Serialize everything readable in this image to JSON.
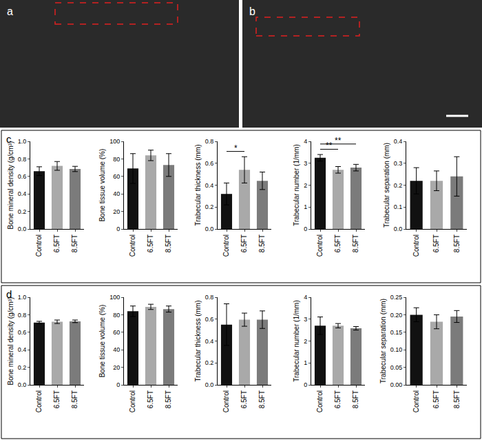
{
  "images": [
    {
      "label": "a"
    },
    {
      "label": "b"
    }
  ],
  "chart_data": [
    {
      "panel": "c",
      "type": "bar",
      "y_label": "Bone mineral density (g/cm³)",
      "categories": [
        "Control",
        "6.5FT",
        "8.5FT"
      ],
      "values": [
        0.66,
        0.72,
        0.685
      ],
      "error": [
        0.05,
        0.05,
        0.03
      ],
      "colors": [
        "#111111",
        "#a9a9a9",
        "#7b7b7b"
      ],
      "ylim": [
        0,
        1.0
      ],
      "yticks": [
        {
          "value": 0,
          "label": "0.0"
        },
        {
          "value": 0.2,
          "label": "0.2"
        },
        {
          "value": 0.4,
          "label": "0.4"
        },
        {
          "value": 0.6,
          "label": "0.6"
        },
        {
          "value": 0.8,
          "label": "0.8"
        },
        {
          "value": 1.0,
          "label": "1.0"
        }
      ],
      "significance": []
    },
    {
      "panel": "c",
      "type": "bar",
      "y_label": "Bone tissue volume (%)",
      "categories": [
        "Control",
        "6.5FT",
        "8.5FT"
      ],
      "values": [
        69,
        84,
        73
      ],
      "error": [
        17,
        6,
        13
      ],
      "colors": [
        "#111111",
        "#a9a9a9",
        "#7b7b7b"
      ],
      "ylim": [
        0,
        100
      ],
      "yticks": [
        0,
        20,
        40,
        60,
        80,
        100
      ],
      "significance": []
    },
    {
      "panel": "c",
      "type": "bar",
      "y_label": "Trabecular thickness (mm)",
      "categories": [
        "Control",
        "6.5FT",
        "8.5FT"
      ],
      "values": [
        0.32,
        0.54,
        0.44
      ],
      "error": [
        0.1,
        0.12,
        0.08
      ],
      "colors": [
        "#111111",
        "#a9a9a9",
        "#7b7b7b"
      ],
      "ylim": [
        0,
        0.8
      ],
      "yticks": [
        {
          "value": 0,
          "label": "0.0"
        },
        {
          "value": 0.2,
          "label": "0.2"
        },
        {
          "value": 0.4,
          "label": "0.4"
        },
        {
          "value": 0.6,
          "label": "0.6"
        },
        {
          "value": 0.8,
          "label": "0.8"
        }
      ],
      "significance": [
        {
          "from": "Control",
          "to": "6.5FT",
          "label": "*"
        }
      ]
    },
    {
      "panel": "c",
      "type": "bar",
      "y_label": "Trabecular number (1/mm)",
      "categories": [
        "Control",
        "6.5FT",
        "8.5FT"
      ],
      "values": [
        3.25,
        2.7,
        2.8
      ],
      "error": [
        0.15,
        0.15,
        0.15
      ],
      "colors": [
        "#111111",
        "#a9a9a9",
        "#7b7b7b"
      ],
      "ylim": [
        0,
        4
      ],
      "yticks": [
        0,
        1,
        2,
        3,
        4
      ],
      "significance": [
        {
          "from": "Control",
          "to": "6.5FT",
          "label": "**"
        },
        {
          "from": "Control",
          "to": "8.5FT",
          "label": "**"
        }
      ]
    },
    {
      "panel": "c",
      "type": "bar",
      "y_label": "Trabecular separation (mm)",
      "categories": [
        "Control",
        "6.5FT",
        "8.5FT"
      ],
      "values": [
        0.22,
        0.22,
        0.24
      ],
      "error": [
        0.06,
        0.045,
        0.09
      ],
      "colors": [
        "#111111",
        "#a9a9a9",
        "#7b7b7b"
      ],
      "ylim": [
        0,
        0.4
      ],
      "yticks": [
        {
          "value": 0,
          "label": "0.0"
        },
        {
          "value": 0.1,
          "label": "0.1"
        },
        {
          "value": 0.2,
          "label": "0.2"
        },
        {
          "value": 0.3,
          "label": "0.3"
        },
        {
          "value": 0.4,
          "label": "0.4"
        }
      ],
      "significance": []
    },
    {
      "panel": "d",
      "type": "bar",
      "y_label": "Bone mineral density (g/cm³)",
      "categories": [
        "Control",
        "6.5FT",
        "8.5FT"
      ],
      "values": [
        0.71,
        0.72,
        0.725
      ],
      "error": [
        0.015,
        0.02,
        0.015
      ],
      "colors": [
        "#111111",
        "#a9a9a9",
        "#7b7b7b"
      ],
      "ylim": [
        0,
        1.0
      ],
      "yticks": [
        {
          "value": 0,
          "label": "0.0"
        },
        {
          "value": 0.2,
          "label": "0.2"
        },
        {
          "value": 0.4,
          "label": "0.4"
        },
        {
          "value": 0.6,
          "label": "0.6"
        },
        {
          "value": 0.8,
          "label": "0.8"
        },
        {
          "value": 1.0,
          "label": "1.0"
        }
      ],
      "significance": []
    },
    {
      "panel": "d",
      "type": "bar",
      "y_label": "Bone tissue volume (%)",
      "categories": [
        "Control",
        "6.5FT",
        "8.5FT"
      ],
      "values": [
        84,
        89,
        86.5
      ],
      "error": [
        6,
        3,
        3.5
      ],
      "colors": [
        "#111111",
        "#a9a9a9",
        "#7b7b7b"
      ],
      "ylim": [
        0,
        100
      ],
      "yticks": [
        0,
        20,
        40,
        60,
        80,
        100
      ],
      "significance": []
    },
    {
      "panel": "d",
      "type": "bar",
      "y_label": "Trabecular thickness (mm)",
      "categories": [
        "Control",
        "6.5FT",
        "8.5FT"
      ],
      "values": [
        0.55,
        0.595,
        0.595
      ],
      "error": [
        0.19,
        0.06,
        0.08
      ],
      "colors": [
        "#111111",
        "#a9a9a9",
        "#7b7b7b"
      ],
      "ylim": [
        0,
        0.8
      ],
      "yticks": [
        {
          "value": 0,
          "label": "0.0"
        },
        {
          "value": 0.2,
          "label": "0.2"
        },
        {
          "value": 0.4,
          "label": "0.4"
        },
        {
          "value": 0.6,
          "label": "0.6"
        },
        {
          "value": 0.8,
          "label": "0.8"
        }
      ],
      "significance": []
    },
    {
      "panel": "d",
      "type": "bar",
      "y_label": "Trabecular number (1/mm)",
      "categories": [
        "Control",
        "6.5FT",
        "8.5FT"
      ],
      "values": [
        2.7,
        2.7,
        2.58
      ],
      "error": [
        0.4,
        0.1,
        0.08
      ],
      "colors": [
        "#111111",
        "#a9a9a9",
        "#7b7b7b"
      ],
      "ylim": [
        0,
        4
      ],
      "yticks": [
        0,
        1,
        2,
        3,
        4
      ],
      "significance": []
    },
    {
      "panel": "d",
      "type": "bar",
      "y_label": "Trabecular separation (mm)",
      "categories": [
        "Control",
        "6.5FT",
        "8.5FT"
      ],
      "values": [
        0.2,
        0.18,
        0.195
      ],
      "error": [
        0.02,
        0.02,
        0.017
      ],
      "colors": [
        "#111111",
        "#a9a9a9",
        "#7b7b7b"
      ],
      "ylim": [
        0,
        0.25
      ],
      "yticks": [
        {
          "value": 0,
          "label": "0.00"
        },
        {
          "value": 0.05,
          "label": "0.05"
        },
        {
          "value": 0.1,
          "label": "0.10"
        },
        {
          "value": 0.15,
          "label": "0.15"
        },
        {
          "value": 0.2,
          "label": "0.20"
        },
        {
          "value": 0.25,
          "label": "0.25"
        }
      ],
      "significance": []
    }
  ]
}
